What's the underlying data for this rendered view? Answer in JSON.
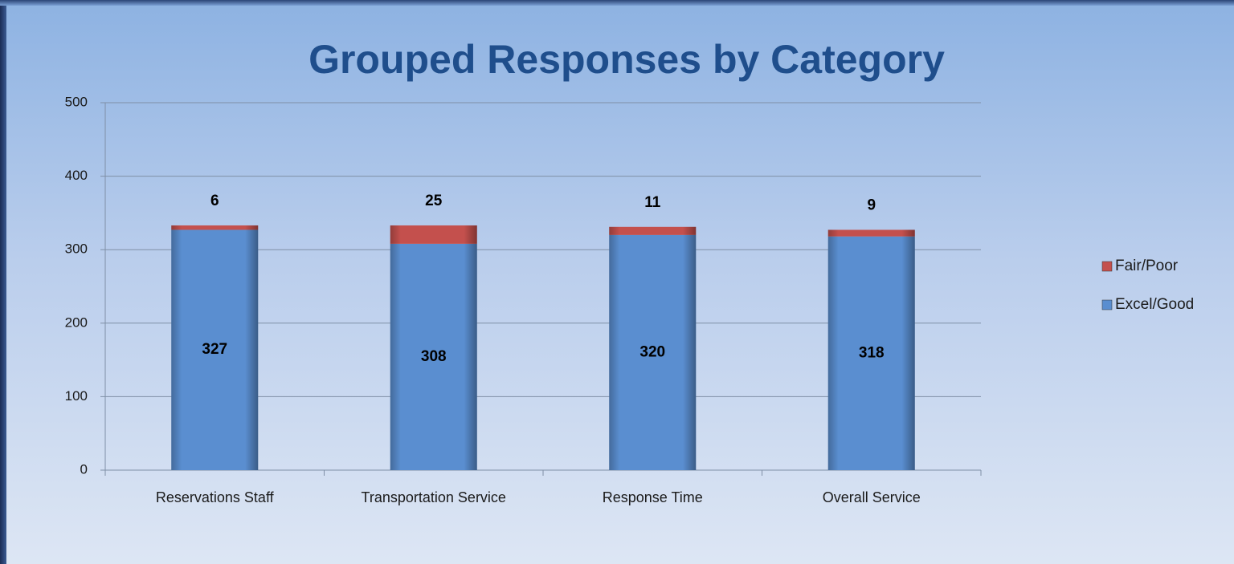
{
  "chart_data": {
    "type": "stacked_bar",
    "title": "Grouped Responses by Category",
    "categories": [
      "Reservations Staff",
      "Transportation Service",
      "Response Time",
      "Overall Service"
    ],
    "series": [
      {
        "name": "Excel/Good",
        "color": "#5a8ed0",
        "values": [
          327,
          308,
          320,
          318
        ]
      },
      {
        "name": "Fair/Poor",
        "color": "#c4504d",
        "values": [
          6,
          25,
          11,
          9
        ]
      }
    ],
    "ylim": [
      0,
      500
    ],
    "yticks": [
      0,
      100,
      200,
      300,
      400,
      500
    ],
    "grid": true,
    "legend": "right"
  }
}
